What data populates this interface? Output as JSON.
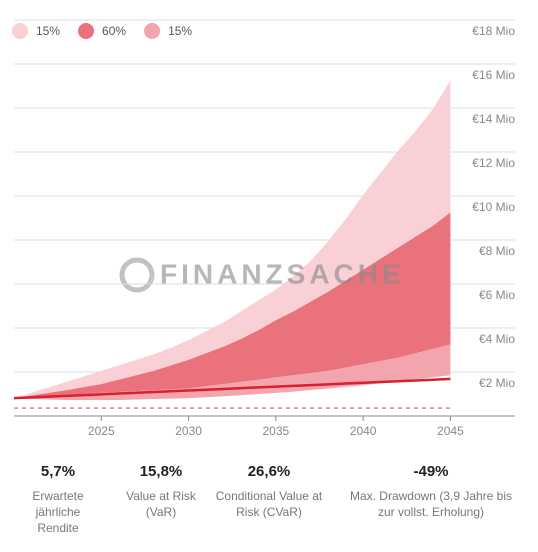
{
  "chart_data": {
    "type": "band",
    "x": [
      2020,
      2021,
      2022,
      2023,
      2024,
      2025,
      2026,
      2027,
      2028,
      2029,
      2030,
      2031,
      2032,
      2033,
      2034,
      2035,
      2036,
      2037,
      2038,
      2039,
      2040,
      2041,
      2042,
      2043,
      2044,
      2045
    ],
    "xlim": [
      2020,
      2048.7
    ],
    "xticks": [
      2025,
      2030,
      2035,
      2040,
      2045
    ],
    "ylim": [
      0,
      18.5
    ],
    "yticks": [
      {
        "value": 2,
        "label": "€2 Mio"
      },
      {
        "value": 4,
        "label": "€4 Mio"
      },
      {
        "value": 6,
        "label": "€6 Mio"
      },
      {
        "value": 8,
        "label": "€8 Mio"
      },
      {
        "value": 10,
        "label": "€10 Mio"
      },
      {
        "value": 12,
        "label": "€12 Mio"
      },
      {
        "value": 14,
        "label": "€14 Mio"
      },
      {
        "value": 16,
        "label": "€16 Mio"
      },
      {
        "value": 18,
        "label": "€18 Mio"
      }
    ],
    "grid": true,
    "legend": "top-left",
    "series": [
      {
        "name": "15%",
        "color": "#f9d0d5",
        "low": [
          0.81,
          0.93,
          1.05,
          1.17,
          1.31,
          1.45,
          1.65,
          1.85,
          2.05,
          2.3,
          2.55,
          2.85,
          3.15,
          3.5,
          3.9,
          4.35,
          4.75,
          5.2,
          5.65,
          6.15,
          6.65,
          7.15,
          7.65,
          8.15,
          8.65,
          9.25
        ],
        "high": [
          0.81,
          1.05,
          1.3,
          1.55,
          1.8,
          2.05,
          2.3,
          2.55,
          2.8,
          3.1,
          3.45,
          3.85,
          4.25,
          4.75,
          5.25,
          5.75,
          6.35,
          7.05,
          7.95,
          8.95,
          10.05,
          11.05,
          12.05,
          12.95,
          13.95,
          15.25
        ]
      },
      {
        "name": "60%",
        "color": "#ea727c",
        "low": [
          0.81,
          0.85,
          0.9,
          0.95,
          1.0,
          1.05,
          1.09,
          1.13,
          1.17,
          1.21,
          1.25,
          1.35,
          1.45,
          1.55,
          1.65,
          1.75,
          1.85,
          1.95,
          2.05,
          2.2,
          2.35,
          2.5,
          2.65,
          2.85,
          3.05,
          3.25
        ],
        "high": [
          0.81,
          0.93,
          1.05,
          1.17,
          1.31,
          1.45,
          1.65,
          1.85,
          2.05,
          2.3,
          2.55,
          2.85,
          3.15,
          3.5,
          3.9,
          4.35,
          4.75,
          5.2,
          5.65,
          6.15,
          6.65,
          7.15,
          7.65,
          8.15,
          8.65,
          9.25
        ]
      },
      {
        "name": "15%",
        "color": "#f2a5ac",
        "low": [
          0.81,
          0.77,
          0.75,
          0.73,
          0.72,
          0.72,
          0.73,
          0.75,
          0.77,
          0.79,
          0.81,
          0.85,
          0.9,
          0.95,
          1.0,
          1.05,
          1.11,
          1.18,
          1.25,
          1.33,
          1.4,
          1.49,
          1.58,
          1.67,
          1.76,
          1.85
        ],
        "high": [
          0.81,
          0.85,
          0.9,
          0.95,
          1.0,
          1.05,
          1.09,
          1.13,
          1.17,
          1.21,
          1.25,
          1.35,
          1.45,
          1.55,
          1.65,
          1.75,
          1.85,
          1.95,
          2.05,
          2.2,
          2.35,
          2.5,
          2.65,
          2.85,
          3.05,
          3.25
        ]
      }
    ],
    "line": {
      "color": "#d9202e",
      "values": [
        0.81,
        0.845,
        0.88,
        0.915,
        0.95,
        0.985,
        1.02,
        1.055,
        1.09,
        1.125,
        1.16,
        1.195,
        1.23,
        1.265,
        1.3,
        1.335,
        1.37,
        1.405,
        1.44,
        1.475,
        1.51,
        1.545,
        1.58,
        1.615,
        1.65,
        1.685
      ]
    },
    "threshold": {
      "value": 0.36,
      "color": "#e05560"
    },
    "watermark": "FINANZSACHE"
  },
  "stats": [
    {
      "value": "5,7%",
      "label": "Erwartete jährliche Rendite"
    },
    {
      "value": "15,8%",
      "label": "Value at Risk (VaR)"
    },
    {
      "value": "26,6%",
      "label": "Conditional Value at Risk (CVaR)"
    },
    {
      "value": "-49%",
      "label": "Max. Drawdown (3,9 Jahre bis zur vollst. Erholung)"
    }
  ]
}
